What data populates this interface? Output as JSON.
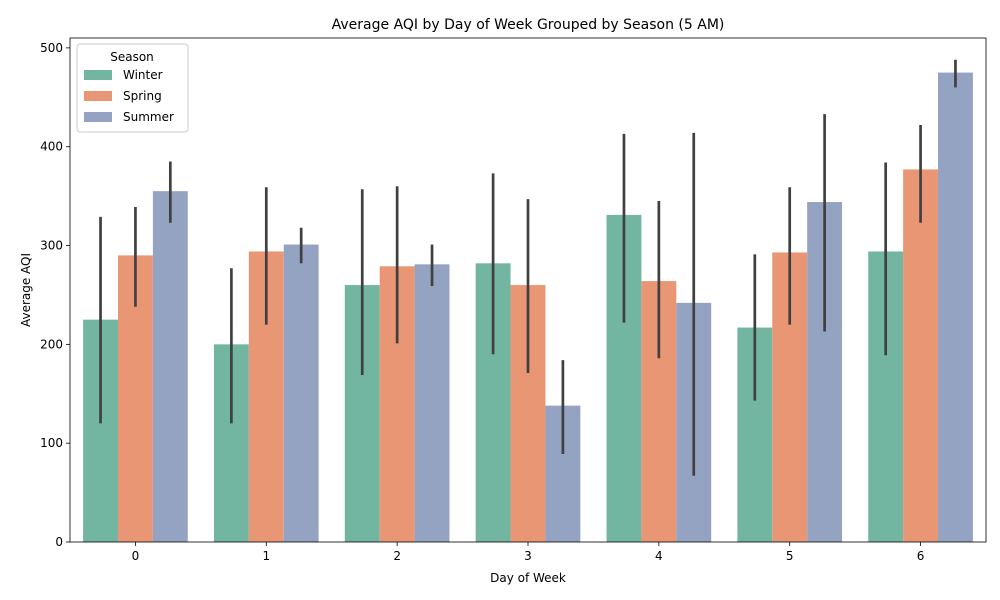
{
  "chart_data": {
    "type": "bar",
    "title": "Average AQI by Day of Week Grouped by Season (5 AM)",
    "xlabel": "Day of Week",
    "ylabel": "Average AQI",
    "ylim": [
      0,
      510
    ],
    "yticks": [
      0,
      100,
      200,
      300,
      400,
      500
    ],
    "categories": [
      "0",
      "1",
      "2",
      "3",
      "4",
      "5",
      "6"
    ],
    "legend": {
      "title": "Season",
      "placement": "top-left"
    },
    "grid": false,
    "series": [
      {
        "name": "Winter",
        "color": "#72b6a1",
        "values": [
          225,
          200,
          260,
          282,
          331,
          217,
          294
        ],
        "ci": [
          [
            120,
            329
          ],
          [
            120,
            277
          ],
          [
            169,
            357
          ],
          [
            190,
            373
          ],
          [
            222,
            413
          ],
          [
            143,
            291
          ],
          [
            189,
            384
          ]
        ]
      },
      {
        "name": "Spring",
        "color": "#e99675",
        "values": [
          290,
          294,
          279,
          260,
          264,
          293,
          377
        ],
        "ci": [
          [
            238,
            339
          ],
          [
            220,
            359
          ],
          [
            201,
            360
          ],
          [
            171,
            347
          ],
          [
            186,
            345
          ],
          [
            220,
            359
          ],
          [
            323,
            422
          ]
        ]
      },
      {
        "name": "Summer",
        "color": "#95a3c3",
        "values": [
          355,
          301,
          281,
          138,
          242,
          344,
          475
        ],
        "ci": [
          [
            323,
            385
          ],
          [
            282,
            318
          ],
          [
            259,
            301
          ],
          [
            89,
            184
          ],
          [
            67,
            414
          ],
          [
            213,
            433
          ],
          [
            460,
            488
          ]
        ]
      }
    ]
  }
}
